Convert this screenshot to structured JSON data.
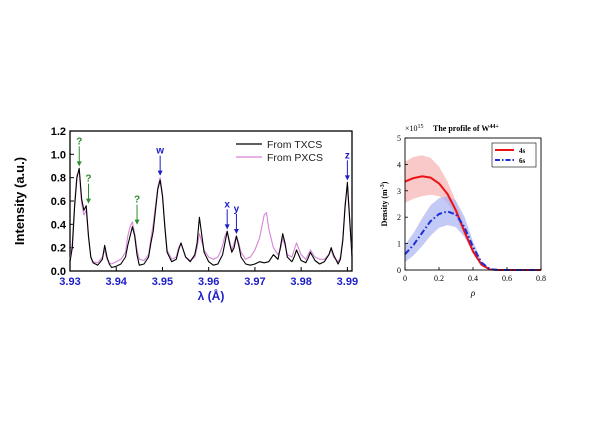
{
  "colors": {
    "txcs": "#000000",
    "pxcs": "#d684d6",
    "tick_blue": "#1c1cc8",
    "annot_green": "#2e8b2e",
    "annot_blue": "#1c1cc8",
    "s4": "#ee1111",
    "s4_band": "#f7b0b0",
    "s6": "#1a2fd8",
    "s6_band": "#aab4f2"
  },
  "chart_data": [
    {
      "type": "line",
      "xlabel": "λ (Å)",
      "ylabel": "Intensity (a.u.)",
      "xlim": [
        3.93,
        3.991
      ],
      "ylim": [
        0,
        1.2
      ],
      "xticks": [
        "3.93",
        "3.94",
        "3.95",
        "3.96",
        "3.97",
        "3.98",
        "3.99"
      ],
      "yticks": [
        "0.0",
        "0.2",
        "0.4",
        "0.6",
        "0.8",
        "1.0",
        "1.2"
      ],
      "legend_position": "top-right",
      "series": [
        {
          "name": "From TXCS",
          "color_key": "txcs",
          "x": [
            3.93,
            3.9305,
            3.931,
            3.9315,
            3.932,
            3.9325,
            3.933,
            3.9335,
            3.934,
            3.9345,
            3.935,
            3.936,
            3.937,
            3.9375,
            3.938,
            3.9385,
            3.939,
            3.94,
            3.941,
            3.942,
            3.9425,
            3.943,
            3.9435,
            3.944,
            3.9445,
            3.945,
            3.946,
            3.947,
            3.9475,
            3.948,
            3.9485,
            3.949,
            3.9495,
            3.95,
            3.9505,
            3.951,
            3.952,
            3.953,
            3.9535,
            3.954,
            3.955,
            3.956,
            3.957,
            3.9575,
            3.958,
            3.959,
            3.96,
            3.961,
            3.962,
            3.9625,
            3.963,
            3.9635,
            3.964,
            3.9645,
            3.965,
            3.9655,
            3.966,
            3.9665,
            3.967,
            3.968,
            3.969,
            3.97,
            3.971,
            3.972,
            3.973,
            3.974,
            3.975,
            3.9755,
            3.976,
            3.9765,
            3.977,
            3.978,
            3.9785,
            3.979,
            3.98,
            3.981,
            3.9815,
            3.982,
            3.983,
            3.984,
            3.985,
            3.986,
            3.9865,
            3.987,
            3.988,
            3.9885,
            3.989,
            3.9895,
            3.99,
            3.991
          ],
          "y": [
            0.08,
            0.2,
            0.55,
            0.8,
            0.88,
            0.62,
            0.52,
            0.56,
            0.3,
            0.12,
            0.07,
            0.05,
            0.1,
            0.22,
            0.12,
            0.06,
            0.03,
            0.04,
            0.06,
            0.12,
            0.22,
            0.3,
            0.38,
            0.3,
            0.14,
            0.05,
            0.06,
            0.12,
            0.24,
            0.34,
            0.52,
            0.7,
            0.78,
            0.64,
            0.38,
            0.16,
            0.08,
            0.1,
            0.18,
            0.24,
            0.12,
            0.08,
            0.14,
            0.24,
            0.46,
            0.16,
            0.08,
            0.05,
            0.06,
            0.1,
            0.14,
            0.24,
            0.34,
            0.24,
            0.16,
            0.2,
            0.3,
            0.22,
            0.12,
            0.06,
            0.05,
            0.06,
            0.08,
            0.07,
            0.08,
            0.14,
            0.1,
            0.2,
            0.32,
            0.24,
            0.12,
            0.08,
            0.12,
            0.18,
            0.09,
            0.07,
            0.11,
            0.16,
            0.09,
            0.06,
            0.08,
            0.14,
            0.2,
            0.14,
            0.06,
            0.1,
            0.26,
            0.55,
            0.76,
            0.12
          ]
        },
        {
          "name": "From PXCS",
          "color_key": "pxcs",
          "x": [
            3.93,
            3.9305,
            3.931,
            3.9315,
            3.932,
            3.9325,
            3.933,
            3.9335,
            3.934,
            3.9345,
            3.935,
            3.936,
            3.937,
            3.9375,
            3.938,
            3.9385,
            3.939,
            3.94,
            3.941,
            3.942,
            3.9425,
            3.943,
            3.9435,
            3.944,
            3.9445,
            3.945,
            3.946,
            3.947,
            3.9475,
            3.948,
            3.9485,
            3.949,
            3.9495,
            3.95,
            3.9505,
            3.951,
            3.952,
            3.953,
            3.9535,
            3.954,
            3.955,
            3.956,
            3.957,
            3.9575,
            3.958,
            3.959,
            3.96,
            3.961,
            3.962,
            3.9625,
            3.963,
            3.9635,
            3.964,
            3.9645,
            3.965,
            3.9655,
            3.966,
            3.9665,
            3.967,
            3.968,
            3.969,
            3.97,
            3.971,
            3.972,
            3.9725,
            3.973,
            3.974,
            3.975,
            3.9755,
            3.976,
            3.9765,
            3.977,
            3.978,
            3.9785,
            3.979,
            3.98,
            3.981,
            3.9815,
            3.982,
            3.983,
            3.984,
            3.985,
            3.986,
            3.9865,
            3.987,
            3.988,
            3.9885,
            3.989,
            3.9895,
            3.99,
            3.991
          ],
          "y": [
            0.1,
            0.24,
            0.58,
            0.82,
            0.86,
            0.58,
            0.48,
            0.52,
            0.28,
            0.12,
            0.08,
            0.07,
            0.12,
            0.18,
            0.1,
            0.07,
            0.06,
            0.08,
            0.1,
            0.16,
            0.3,
            0.38,
            0.42,
            0.32,
            0.18,
            0.1,
            0.09,
            0.14,
            0.28,
            0.4,
            0.56,
            0.72,
            0.8,
            0.66,
            0.4,
            0.18,
            0.1,
            0.12,
            0.2,
            0.24,
            0.12,
            0.09,
            0.12,
            0.2,
            0.32,
            0.18,
            0.12,
            0.1,
            0.12,
            0.16,
            0.22,
            0.3,
            0.34,
            0.26,
            0.18,
            0.24,
            0.3,
            0.24,
            0.16,
            0.1,
            0.12,
            0.18,
            0.28,
            0.48,
            0.5,
            0.36,
            0.2,
            0.14,
            0.18,
            0.28,
            0.22,
            0.14,
            0.12,
            0.18,
            0.24,
            0.14,
            0.1,
            0.14,
            0.18,
            0.12,
            0.1,
            0.1,
            0.14,
            0.18,
            0.12,
            0.08,
            0.12,
            0.28,
            0.58,
            0.72,
            0.14
          ]
        }
      ],
      "annotations": [
        {
          "label": "?",
          "x": 3.932,
          "y": 0.88,
          "color_key": "annot_green"
        },
        {
          "label": "?",
          "x": 3.934,
          "y": 0.56,
          "color_key": "annot_green"
        },
        {
          "label": "?",
          "x": 3.9445,
          "y": 0.38,
          "color_key": "annot_green"
        },
        {
          "label": "w",
          "x": 3.9495,
          "y": 0.8,
          "color_key": "annot_blue"
        },
        {
          "label": "x",
          "x": 3.964,
          "y": 0.34,
          "color_key": "annot_blue"
        },
        {
          "label": "y",
          "x": 3.966,
          "y": 0.3,
          "color_key": "annot_blue"
        },
        {
          "label": "z",
          "x": 3.99,
          "y": 0.76,
          "color_key": "annot_blue"
        }
      ]
    },
    {
      "type": "line",
      "title": "The profile of W",
      "title_superscript": "44+",
      "scale_multiplier": "×10",
      "scale_exponent": "15",
      "xlabel": "ρ",
      "ylabel": "Density (m",
      "ylabel_superscript": "-3",
      "ylabel_suffix": ")",
      "xlim": [
        0,
        0.8
      ],
      "ylim": [
        0,
        5
      ],
      "xticks": [
        "0",
        "0.2",
        "0.4",
        "0.6",
        "0.8"
      ],
      "yticks": [
        "0",
        "1",
        "2",
        "3",
        "4",
        "5"
      ],
      "legend_position": "top-right",
      "series": [
        {
          "name": "4s",
          "color_key": "s4",
          "band_color_key": "s4_band",
          "style": "solid",
          "x": [
            0,
            0.05,
            0.1,
            0.15,
            0.2,
            0.25,
            0.3,
            0.35,
            0.4,
            0.45,
            0.5,
            0.55,
            0.6,
            0.65,
            0.7,
            0.75,
            0.8
          ],
          "y": [
            3.35,
            3.48,
            3.55,
            3.5,
            3.28,
            2.88,
            2.25,
            1.45,
            0.7,
            0.2,
            0.02,
            0,
            0,
            0,
            0,
            0,
            0
          ],
          "lower": [
            2.55,
            2.7,
            2.8,
            2.85,
            2.8,
            2.55,
            2.0,
            1.3,
            0.62,
            0.18,
            0.02,
            0,
            0,
            0,
            0,
            0,
            0
          ],
          "upper": [
            4.1,
            4.28,
            4.35,
            4.25,
            3.92,
            3.35,
            2.6,
            1.65,
            0.8,
            0.24,
            0.03,
            0,
            0,
            0,
            0,
            0,
            0
          ]
        },
        {
          "name": "6s",
          "color_key": "s6",
          "band_color_key": "s6_band",
          "style": "dashdot",
          "x": [
            0,
            0.05,
            0.1,
            0.15,
            0.2,
            0.25,
            0.3,
            0.35,
            0.4,
            0.45,
            0.5,
            0.55,
            0.6,
            0.65,
            0.7,
            0.75,
            0.8
          ],
          "y": [
            0.6,
            0.95,
            1.4,
            1.85,
            2.12,
            2.22,
            2.1,
            1.62,
            0.88,
            0.28,
            0.03,
            0,
            0,
            0,
            0,
            0,
            0
          ],
          "lower": [
            0.3,
            0.55,
            0.9,
            1.3,
            1.6,
            1.7,
            1.62,
            1.25,
            0.7,
            0.22,
            0.02,
            0,
            0,
            0,
            0,
            0,
            0
          ],
          "upper": [
            0.95,
            1.4,
            1.95,
            2.45,
            2.72,
            2.8,
            2.62,
            2.02,
            1.08,
            0.34,
            0.04,
            0,
            0,
            0,
            0,
            0,
            0
          ]
        }
      ]
    }
  ]
}
